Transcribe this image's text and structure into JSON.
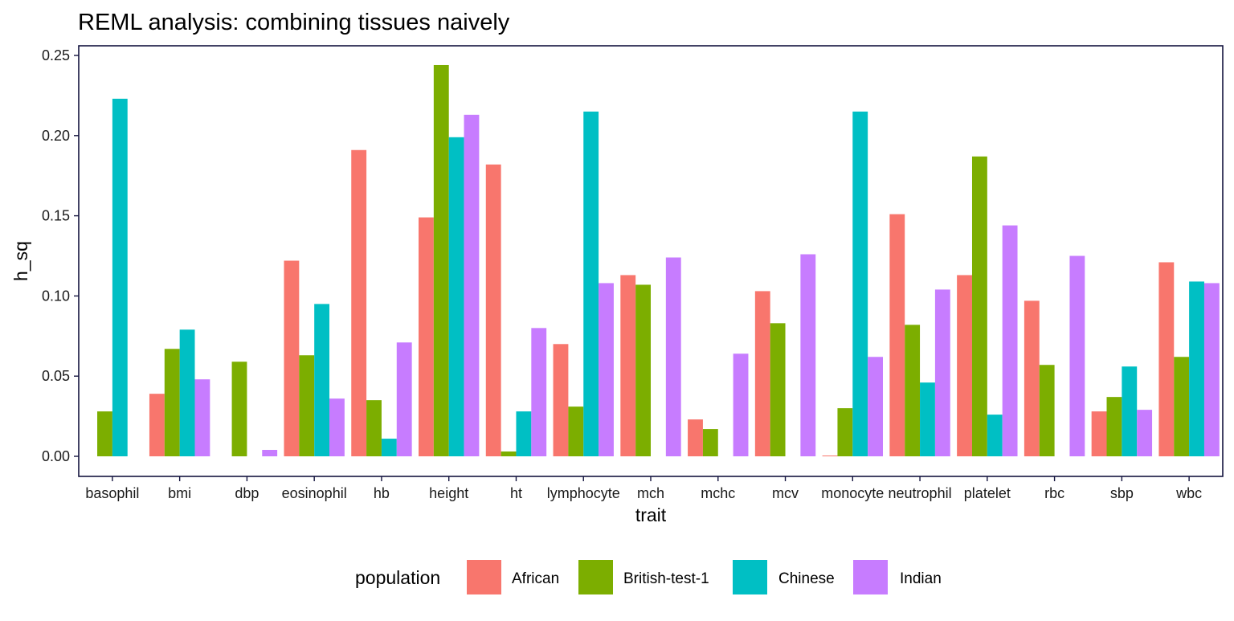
{
  "chart_data": {
    "type": "bar",
    "title": "REML analysis: combining tissues naively",
    "xlabel": "trait",
    "ylabel": "h_sq",
    "ylim": [
      -0.012,
      0.256
    ],
    "yticks": [
      "0.00",
      "0.05",
      "0.10",
      "0.15",
      "0.20",
      "0.25"
    ],
    "ytick_values": [
      0,
      0.05,
      0.1,
      0.15,
      0.2,
      0.25
    ],
    "grid": false,
    "legend": {
      "title": "population",
      "position": "bottom"
    },
    "categories": [
      "basophil",
      "bmi",
      "dbp",
      "eosinophil",
      "hb",
      "height",
      "ht",
      "lymphocyte",
      "mch",
      "mchc",
      "mcv",
      "monocyte",
      "neutrophil",
      "platelet",
      "rbc",
      "sbp",
      "wbc"
    ],
    "series": [
      {
        "name": "African",
        "color": "#F8766D",
        "values": [
          null,
          0.039,
          null,
          0.122,
          0.191,
          0.149,
          0.182,
          0.07,
          0.113,
          0.023,
          0.103,
          0.0005,
          0.151,
          0.113,
          0.097,
          0.028,
          0.121
        ]
      },
      {
        "name": "British-test-1",
        "color": "#7CAE00",
        "values": [
          0.028,
          0.067,
          0.059,
          0.063,
          0.035,
          0.244,
          0.003,
          0.031,
          0.107,
          0.017,
          0.083,
          0.03,
          0.082,
          0.187,
          0.057,
          0.037,
          0.062
        ]
      },
      {
        "name": "Chinese",
        "color": "#00BFC4",
        "values": [
          0.223,
          0.079,
          null,
          0.095,
          0.011,
          0.199,
          0.028,
          0.215,
          null,
          null,
          null,
          0.215,
          0.046,
          0.026,
          null,
          0.056,
          0.109
        ]
      },
      {
        "name": "Indian",
        "color": "#C77CFF",
        "values": [
          null,
          0.048,
          0.004,
          0.036,
          0.071,
          0.213,
          0.08,
          0.108,
          0.124,
          0.064,
          0.126,
          0.062,
          0.104,
          0.144,
          0.125,
          0.029,
          0.108
        ]
      }
    ]
  }
}
